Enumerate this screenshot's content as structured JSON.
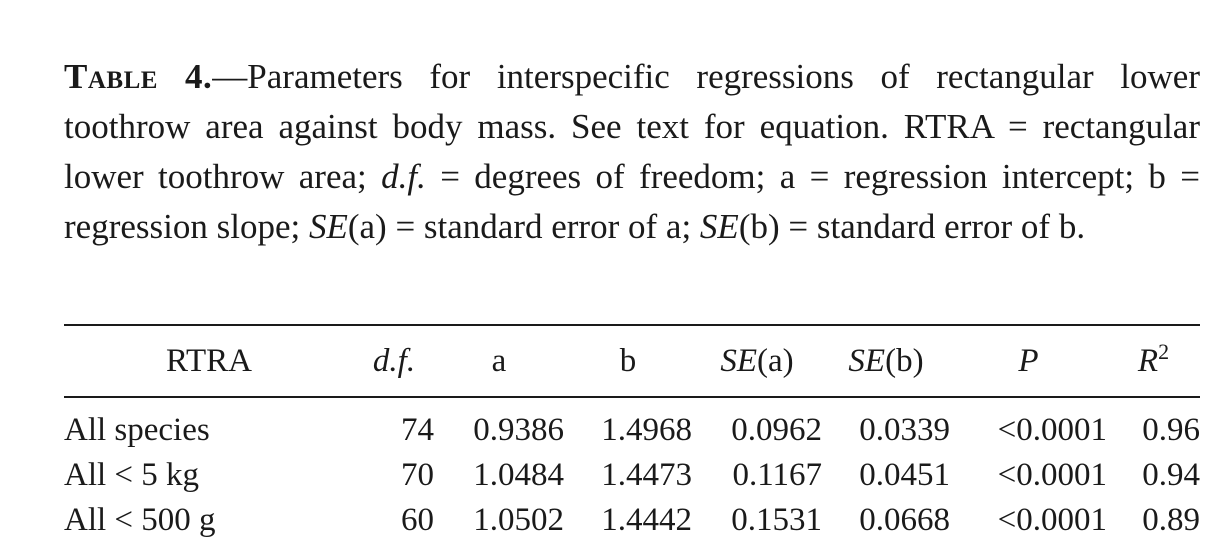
{
  "caption": {
    "label": "Table 4.",
    "text": "—Parameters for interspecific regressions of rectangular lower toothrow area against body mass. See text for equation. RTRA = rectangular lower toothrow area;",
    "df_term": "d.f.",
    "text2": " = degrees of freedom; a = regression intercept; b = regression slope;",
    "sea_term": "SE",
    "text3": "(a) = standard error of a;",
    "seb_term": "SE",
    "text4": "(b) = standard error of b."
  },
  "table": {
    "headers": {
      "name": "RTRA",
      "df": "d.f.",
      "a": "a",
      "b": "b",
      "sea_italic": "SE",
      "sea_rest": "(a)",
      "seb_italic": "SE",
      "seb_rest": "(b)",
      "p": "P",
      "r2_base": "R",
      "r2_sup": "2"
    },
    "rows": [
      {
        "name": "All species",
        "df": "74",
        "a": "0.9386",
        "b": "1.4968",
        "sea": "0.0962",
        "seb": "0.0339",
        "p": "<0.0001",
        "r2": "0.96"
      },
      {
        "name": "All < 5 kg",
        "df": "70",
        "a": "1.0484",
        "b": "1.4473",
        "sea": "0.1167",
        "seb": "0.0451",
        "p": "<0.0001",
        "r2": "0.94"
      },
      {
        "name": "All < 500 g",
        "df": "60",
        "a": "1.0502",
        "b": "1.4442",
        "sea": "0.1531",
        "seb": "0.0668",
        "p": "<0.0001",
        "r2": "0.89"
      }
    ]
  }
}
